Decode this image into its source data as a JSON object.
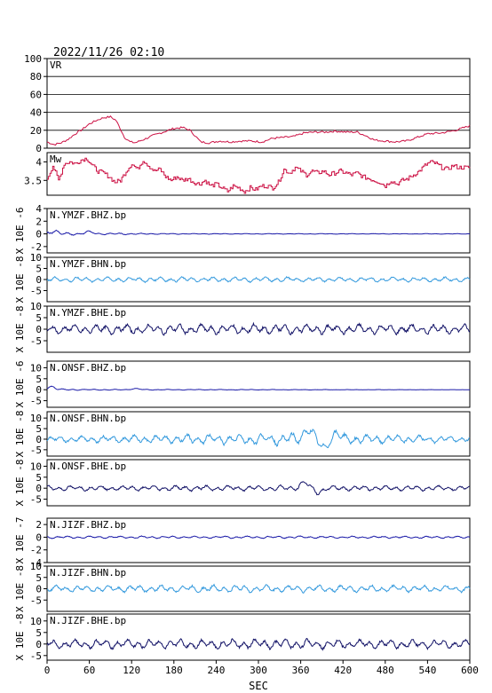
{
  "header": {
    "datetime": "2022/11/26 02:10"
  },
  "chart_data": {
    "type": "line",
    "xlabel": "SEC",
    "xlim": [
      0,
      600
    ],
    "xticks": [
      0,
      60,
      120,
      180,
      240,
      300,
      360,
      420,
      480,
      540,
      600
    ],
    "panels": [
      {
        "id": "vr",
        "label": "VR",
        "ylim": [
          0,
          100
        ],
        "yticks": [
          0,
          20,
          40,
          60,
          80,
          100
        ],
        "grid": true,
        "color": "#cc1144",
        "step": false,
        "points": [
          [
            0,
            7
          ],
          [
            10,
            4
          ],
          [
            20,
            6
          ],
          [
            30,
            10
          ],
          [
            40,
            16
          ],
          [
            50,
            21
          ],
          [
            60,
            27
          ],
          [
            70,
            31
          ],
          [
            80,
            34
          ],
          [
            90,
            35
          ],
          [
            98,
            31
          ],
          [
            105,
            20
          ],
          [
            110,
            12
          ],
          [
            118,
            7
          ],
          [
            125,
            6
          ],
          [
            135,
            9
          ],
          [
            150,
            14
          ],
          [
            165,
            18
          ],
          [
            180,
            22
          ],
          [
            193,
            23
          ],
          [
            203,
            20
          ],
          [
            210,
            14
          ],
          [
            218,
            7
          ],
          [
            230,
            6
          ],
          [
            245,
            8
          ],
          [
            260,
            7
          ],
          [
            275,
            8
          ],
          [
            290,
            8
          ],
          [
            305,
            7
          ],
          [
            320,
            11
          ],
          [
            335,
            12
          ],
          [
            350,
            13
          ],
          [
            365,
            17
          ],
          [
            380,
            18
          ],
          [
            395,
            18
          ],
          [
            410,
            19
          ],
          [
            425,
            18
          ],
          [
            440,
            18
          ],
          [
            455,
            13
          ],
          [
            465,
            9
          ],
          [
            480,
            8
          ],
          [
            495,
            7
          ],
          [
            510,
            8
          ],
          [
            525,
            12
          ],
          [
            540,
            16
          ],
          [
            560,
            17
          ],
          [
            580,
            20
          ],
          [
            600,
            25
          ]
        ]
      },
      {
        "id": "mw",
        "label": "Mw",
        "ylim": [
          3.1,
          4.25
        ],
        "yticks": [
          3.5,
          4.0
        ],
        "grid": false,
        "color": "#cc1144",
        "step": true,
        "points": [
          [
            0,
            3.55
          ],
          [
            8,
            3.9
          ],
          [
            16,
            3.5
          ],
          [
            24,
            3.95
          ],
          [
            32,
            4.0
          ],
          [
            40,
            3.95
          ],
          [
            48,
            4.05
          ],
          [
            56,
            4.1
          ],
          [
            64,
            3.9
          ],
          [
            72,
            3.75
          ],
          [
            80,
            3.7
          ],
          [
            88,
            3.6
          ],
          [
            96,
            3.45
          ],
          [
            104,
            3.5
          ],
          [
            112,
            3.75
          ],
          [
            120,
            3.95
          ],
          [
            128,
            3.8
          ],
          [
            136,
            4.05
          ],
          [
            144,
            3.9
          ],
          [
            152,
            3.75
          ],
          [
            160,
            3.8
          ],
          [
            168,
            3.6
          ],
          [
            176,
            3.5
          ],
          [
            184,
            3.6
          ],
          [
            192,
            3.5
          ],
          [
            200,
            3.55
          ],
          [
            208,
            3.45
          ],
          [
            216,
            3.4
          ],
          [
            224,
            3.5
          ],
          [
            232,
            3.35
          ],
          [
            240,
            3.4
          ],
          [
            248,
            3.3
          ],
          [
            256,
            3.2
          ],
          [
            264,
            3.35
          ],
          [
            272,
            3.3
          ],
          [
            280,
            3.2
          ],
          [
            288,
            3.3
          ],
          [
            296,
            3.25
          ],
          [
            304,
            3.35
          ],
          [
            312,
            3.35
          ],
          [
            320,
            3.3
          ],
          [
            328,
            3.45
          ],
          [
            336,
            3.8
          ],
          [
            344,
            3.7
          ],
          [
            352,
            3.85
          ],
          [
            360,
            3.75
          ],
          [
            368,
            3.65
          ],
          [
            376,
            3.75
          ],
          [
            384,
            3.7
          ],
          [
            392,
            3.75
          ],
          [
            400,
            3.65
          ],
          [
            408,
            3.7
          ],
          [
            416,
            3.75
          ],
          [
            424,
            3.7
          ],
          [
            432,
            3.65
          ],
          [
            440,
            3.7
          ],
          [
            448,
            3.6
          ],
          [
            456,
            3.55
          ],
          [
            464,
            3.5
          ],
          [
            472,
            3.45
          ],
          [
            480,
            3.35
          ],
          [
            488,
            3.5
          ],
          [
            496,
            3.4
          ],
          [
            504,
            3.5
          ],
          [
            512,
            3.55
          ],
          [
            520,
            3.65
          ],
          [
            528,
            3.75
          ],
          [
            536,
            3.9
          ],
          [
            544,
            4.0
          ],
          [
            552,
            3.95
          ],
          [
            560,
            3.85
          ],
          [
            568,
            3.8
          ],
          [
            576,
            3.9
          ],
          [
            584,
            3.85
          ],
          [
            600,
            3.85
          ]
        ]
      },
      {
        "id": "ymzf-bhz",
        "label": "N.YMZF.BHZ.bp",
        "unit": "X 10E -6",
        "ylim": [
          -3,
          4
        ],
        "yticks": [
          -2,
          0,
          2,
          4
        ],
        "color": "#1a1aa8",
        "envelope": [
          [
            0,
            0.45
          ],
          [
            30,
            0.22
          ],
          [
            90,
            0.15
          ],
          [
            200,
            0.06
          ],
          [
            600,
            0.04
          ]
        ],
        "bump": [
          [
            8,
            0.5
          ],
          [
            60,
            0.3
          ]
        ]
      },
      {
        "id": "ymzf-bhn",
        "label": "N.YMZF.BHN.bp",
        "unit": "X 10E -8",
        "ylim": [
          -10,
          10
        ],
        "yticks": [
          -5,
          0,
          5,
          10
        ],
        "color": "#3399dd",
        "envelope": [
          [
            0,
            1.2
          ],
          [
            100,
            1.3
          ],
          [
            300,
            1.2
          ],
          [
            600,
            1.1
          ]
        ]
      },
      {
        "id": "ymzf-bhe",
        "label": "N.YMZF.BHE.bp",
        "unit": "X 10E -8",
        "ylim": [
          -10,
          10
        ],
        "yticks": [
          -5,
          0,
          5,
          10
        ],
        "color": "#111166",
        "envelope": [
          [
            0,
            2.2
          ],
          [
            300,
            2.4
          ],
          [
            600,
            2.2
          ]
        ]
      },
      {
        "id": "onsf-bhz",
        "label": "N.ONSF.BHZ.bp",
        "unit": "X 10E -6",
        "ylim": [
          -8,
          13
        ],
        "yticks": [
          -5,
          0,
          5,
          10
        ],
        "color": "#1a1aa8",
        "envelope": [
          [
            0,
            0.6
          ],
          [
            30,
            0.3
          ],
          [
            120,
            0.2
          ],
          [
            600,
            0.05
          ]
        ],
        "bump": [
          [
            6,
            1.5
          ],
          [
            125,
            0.5
          ]
        ]
      },
      {
        "id": "onsf-bhn",
        "label": "N.ONSF.BHN.bp",
        "unit": "X 10E -8",
        "ylim": [
          -8,
          13
        ],
        "yticks": [
          -5,
          0,
          5,
          10
        ],
        "color": "#3399dd",
        "envelope": [
          [
            0,
            1.5
          ],
          [
            200,
            2.5
          ],
          [
            350,
            3.0
          ],
          [
            600,
            1.5
          ]
        ],
        "bump": [
          [
            370,
            5.0
          ],
          [
            392,
            -4.0
          ],
          [
            410,
            2.5
          ]
        ]
      },
      {
        "id": "onsf-bhe",
        "label": "N.ONSF.BHE.bp",
        "unit": "X 10E -8",
        "ylim": [
          -8,
          13
        ],
        "yticks": [
          -5,
          0,
          5,
          10
        ],
        "color": "#111166",
        "envelope": [
          [
            0,
            1.2
          ],
          [
            300,
            1.4
          ],
          [
            600,
            1.2
          ]
        ],
        "bump": [
          [
            365,
            2.5
          ],
          [
            385,
            -1.8
          ]
        ]
      },
      {
        "id": "jizf-bhz",
        "label": "N.JIZF.BHZ.bp",
        "unit": "X 10E -7",
        "ylim": [
          -4,
          3
        ],
        "yticks": [
          -4,
          -2,
          0,
          2
        ],
        "color": "#1a1aa8",
        "envelope": [
          [
            0,
            0.2
          ],
          [
            600,
            0.18
          ]
        ]
      },
      {
        "id": "jizf-bhn",
        "label": "N.JIZF.BHN.bp",
        "unit": "X 10E -8",
        "ylim": [
          -10,
          10
        ],
        "yticks": [
          -5,
          0,
          5,
          10
        ],
        "color": "#3399dd",
        "envelope": [
          [
            0,
            1.5
          ],
          [
            300,
            1.8
          ],
          [
            600,
            1.5
          ]
        ]
      },
      {
        "id": "jizf-bhe",
        "label": "N.JIZF.BHE.bp",
        "unit": "X 10E -8",
        "ylim": [
          -7,
          13
        ],
        "yticks": [
          -5,
          0,
          5,
          10
        ],
        "color": "#111166",
        "envelope": [
          [
            0,
            2.0
          ],
          [
            300,
            2.3
          ],
          [
            600,
            2.0
          ]
        ]
      }
    ]
  }
}
